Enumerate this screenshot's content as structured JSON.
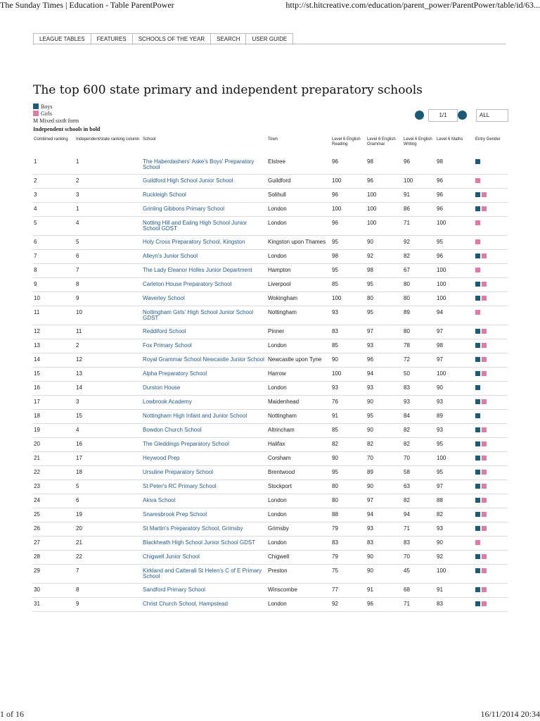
{
  "browser": {
    "page_title": "The Sunday Times | Education - Table ParentPower",
    "url": "http://st.hitcreative.com/education/parent_power/ParentPower/table/id/63..."
  },
  "nav": [
    "LEAGUE TABLES",
    "FEATURES",
    "SCHOOLS OF THE YEAR",
    "SEARCH",
    "USER GUIDE"
  ],
  "title": "The top 600 state primary and independent preparatory schools",
  "legend": [
    {
      "label": "Boys",
      "color": "#1b5b78"
    },
    {
      "label": "Girls",
      "color": "#e27aa9"
    },
    {
      "symbol": "M",
      "label": "Mixed sixth form"
    }
  ],
  "note": "Independent schools in bold",
  "pager": {
    "page": "1/1",
    "filter": "ALL"
  },
  "table": {
    "columns": [
      "Combined ranking",
      "Independent/state ranking column",
      "School",
      "Town",
      "Level 6 English Reading",
      "Level 6 English Grammar",
      "Level 6 English Writing",
      "Level 6 Maths",
      "Entry Gender"
    ],
    "rows": [
      [
        1,
        1,
        "The Haberdashers' Aske's Boys' Preparatory School",
        "Elstree",
        96,
        98,
        96,
        98,
        [
          0
        ]
      ],
      [
        2,
        2,
        "Guildford High School Junior School",
        "Guildford",
        100,
        96,
        100,
        96,
        [
          1
        ]
      ],
      [
        3,
        3,
        "Ruckleigh School",
        "Solihull",
        96,
        100,
        91,
        96,
        [
          0,
          1
        ]
      ],
      [
        4,
        1,
        "Grinling Gibbons Primary School",
        "London",
        100,
        100,
        86,
        96,
        [
          0,
          1
        ]
      ],
      [
        5,
        4,
        "Notting Hill and Ealing High School Junior School GDST",
        "London",
        96,
        100,
        71,
        100,
        [
          1
        ]
      ],
      [
        6,
        5,
        "Holy Cross Preparatory School, Kingston",
        "Kingston upon Thames",
        95,
        90,
        92,
        95,
        [
          1
        ]
      ],
      [
        7,
        6,
        "Alleyn's Junior School",
        "London",
        98,
        92,
        82,
        96,
        [
          0,
          1
        ]
      ],
      [
        8,
        7,
        "The Lady Eleanor Holles Junior Department",
        "Hampton",
        95,
        98,
        67,
        100,
        [
          1
        ]
      ],
      [
        9,
        8,
        "Carleton House Preparatory School",
        "Liverpool",
        85,
        95,
        80,
        100,
        [
          0,
          1
        ]
      ],
      [
        10,
        9,
        "Waverley School",
        "Wokingham",
        100,
        80,
        80,
        100,
        [
          0,
          1
        ]
      ],
      [
        11,
        10,
        "Nottingham Girls' High School Junior School GDST",
        "Nottingham",
        93,
        95,
        89,
        94,
        [
          1
        ]
      ],
      [
        12,
        11,
        "Reddiford School",
        "Pinner",
        83,
        97,
        80,
        97,
        [
          0,
          1
        ]
      ],
      [
        13,
        2,
        "Fox Primary School",
        "London",
        85,
        93,
        78,
        98,
        [
          0,
          1
        ]
      ],
      [
        14,
        12,
        "Royal Grammar School Newcastle Junior School",
        "Newcastle upon Tyne",
        90,
        96,
        72,
        97,
        [
          0,
          1
        ]
      ],
      [
        15,
        13,
        "Alpha Preparatory School",
        "Harrow",
        100,
        94,
        50,
        100,
        [
          0,
          1
        ]
      ],
      [
        16,
        14,
        "Durston House",
        "London",
        93,
        93,
        83,
        90,
        [
          0
        ]
      ],
      [
        17,
        3,
        "Lowbrook Academy",
        "Maidenhead",
        76,
        90,
        93,
        93,
        [
          0,
          1
        ]
      ],
      [
        18,
        15,
        "Nottingham High Infant and Junior School",
        "Nottingham",
        91,
        95,
        84,
        89,
        [
          0
        ]
      ],
      [
        19,
        4,
        "Bowdon Church School",
        "Altrincham",
        85,
        90,
        82,
        93,
        [
          0,
          1
        ]
      ],
      [
        20,
        16,
        "The Gleddings Preparatory School",
        "Halifax",
        82,
        82,
        82,
        95,
        [
          0,
          1
        ]
      ],
      [
        21,
        17,
        "Heywood Prep",
        "Corsham",
        90,
        70,
        70,
        100,
        [
          0,
          1
        ]
      ],
      [
        22,
        18,
        "Ursuline Preparatory School",
        "Brentwood",
        95,
        89,
        58,
        95,
        [
          0,
          1
        ]
      ],
      [
        23,
        5,
        "St Peter's RC Primary School",
        "Stockport",
        80,
        90,
        63,
        97,
        [
          0,
          1
        ]
      ],
      [
        24,
        6,
        "Akiva School",
        "London",
        80,
        97,
        82,
        88,
        [
          0,
          1
        ]
      ],
      [
        25,
        19,
        "Snaresbrook Prep School",
        "London",
        88,
        94,
        94,
        82,
        [
          0,
          1
        ]
      ],
      [
        26,
        20,
        "St Martin's Preparatory School, Grimsby",
        "Grimsby",
        79,
        93,
        71,
        93,
        [
          0,
          1
        ]
      ],
      [
        27,
        21,
        "Blackheath High School Junior School GDST",
        "London",
        83,
        83,
        83,
        90,
        [
          1
        ]
      ],
      [
        28,
        22,
        "Chigwell Junior School",
        "Chigwell",
        79,
        90,
        70,
        92,
        [
          0,
          1
        ]
      ],
      [
        29,
        7,
        "Kirkland and Catterall St Helen's C of E Primary School",
        "Preston",
        75,
        90,
        45,
        100,
        [
          0,
          1
        ]
      ],
      [
        30,
        8,
        "Sandford Primary School",
        "Winscombe",
        77,
        91,
        68,
        91,
        [
          0,
          1
        ]
      ],
      [
        31,
        9,
        "Christ Church School, Hampstead",
        "London",
        92,
        96,
        71,
        83,
        [
          0,
          1
        ]
      ]
    ]
  },
  "footer": {
    "page": "1 of 16",
    "timestamp": "16/11/2014 20:34"
  }
}
